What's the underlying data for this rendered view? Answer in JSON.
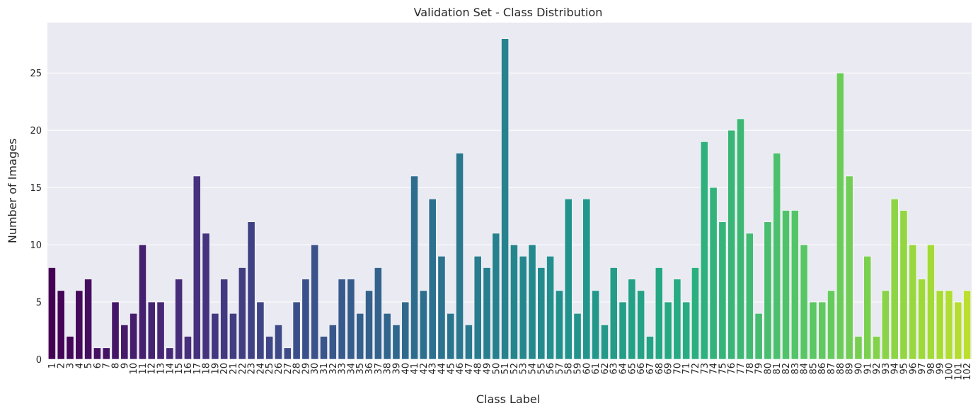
{
  "chart_data": {
    "type": "bar",
    "title": "Validation Set - Class Distribution",
    "xlabel": "Class Label",
    "ylabel": "Number of Images",
    "ylim": [
      0,
      29.4
    ],
    "yticks": [
      0,
      5,
      10,
      15,
      20,
      25
    ],
    "grid": true,
    "legend": "none",
    "palette": "viridis",
    "categories": [
      "1",
      "2",
      "3",
      "4",
      "5",
      "6",
      "7",
      "8",
      "9",
      "10",
      "11",
      "12",
      "13",
      "14",
      "15",
      "16",
      "17",
      "18",
      "19",
      "20",
      "21",
      "22",
      "23",
      "24",
      "25",
      "26",
      "27",
      "28",
      "29",
      "30",
      "31",
      "32",
      "33",
      "34",
      "35",
      "36",
      "37",
      "38",
      "39",
      "40",
      "41",
      "42",
      "43",
      "44",
      "45",
      "46",
      "47",
      "48",
      "49",
      "50",
      "51",
      "52",
      "53",
      "54",
      "55",
      "56",
      "57",
      "58",
      "59",
      "60",
      "61",
      "62",
      "63",
      "64",
      "65",
      "66",
      "67",
      "68",
      "69",
      "70",
      "71",
      "72",
      "73",
      "74",
      "75",
      "76",
      "77",
      "78",
      "79",
      "80",
      "81",
      "82",
      "83",
      "84",
      "85",
      "86",
      "87",
      "88",
      "89",
      "90",
      "91",
      "92",
      "93",
      "94",
      "95",
      "96",
      "97",
      "98",
      "99",
      "100",
      "101",
      "102"
    ],
    "values": [
      8,
      6,
      2,
      6,
      7,
      1,
      1,
      5,
      3,
      4,
      10,
      5,
      5,
      1,
      7,
      2,
      16,
      11,
      4,
      7,
      4,
      8,
      12,
      5,
      2,
      3,
      1,
      5,
      7,
      10,
      2,
      3,
      7,
      7,
      4,
      6,
      8,
      4,
      3,
      5,
      16,
      6,
      14,
      9,
      4,
      18,
      3,
      9,
      8,
      11,
      28,
      10,
      9,
      10,
      8,
      9,
      6,
      14,
      4,
      14,
      6,
      3,
      8,
      5,
      7,
      6,
      2,
      8,
      5,
      7,
      5,
      8,
      19,
      15,
      12,
      20,
      21,
      11,
      4,
      12,
      18,
      13,
      13,
      10,
      5,
      5,
      6,
      25,
      16,
      2,
      9,
      2,
      6,
      14,
      13,
      10,
      7,
      10,
      6,
      6,
      5,
      6
    ]
  },
  "colors": {
    "plot_background": "#eaeaf2",
    "grid": "#ffffff",
    "text": "#262626"
  }
}
